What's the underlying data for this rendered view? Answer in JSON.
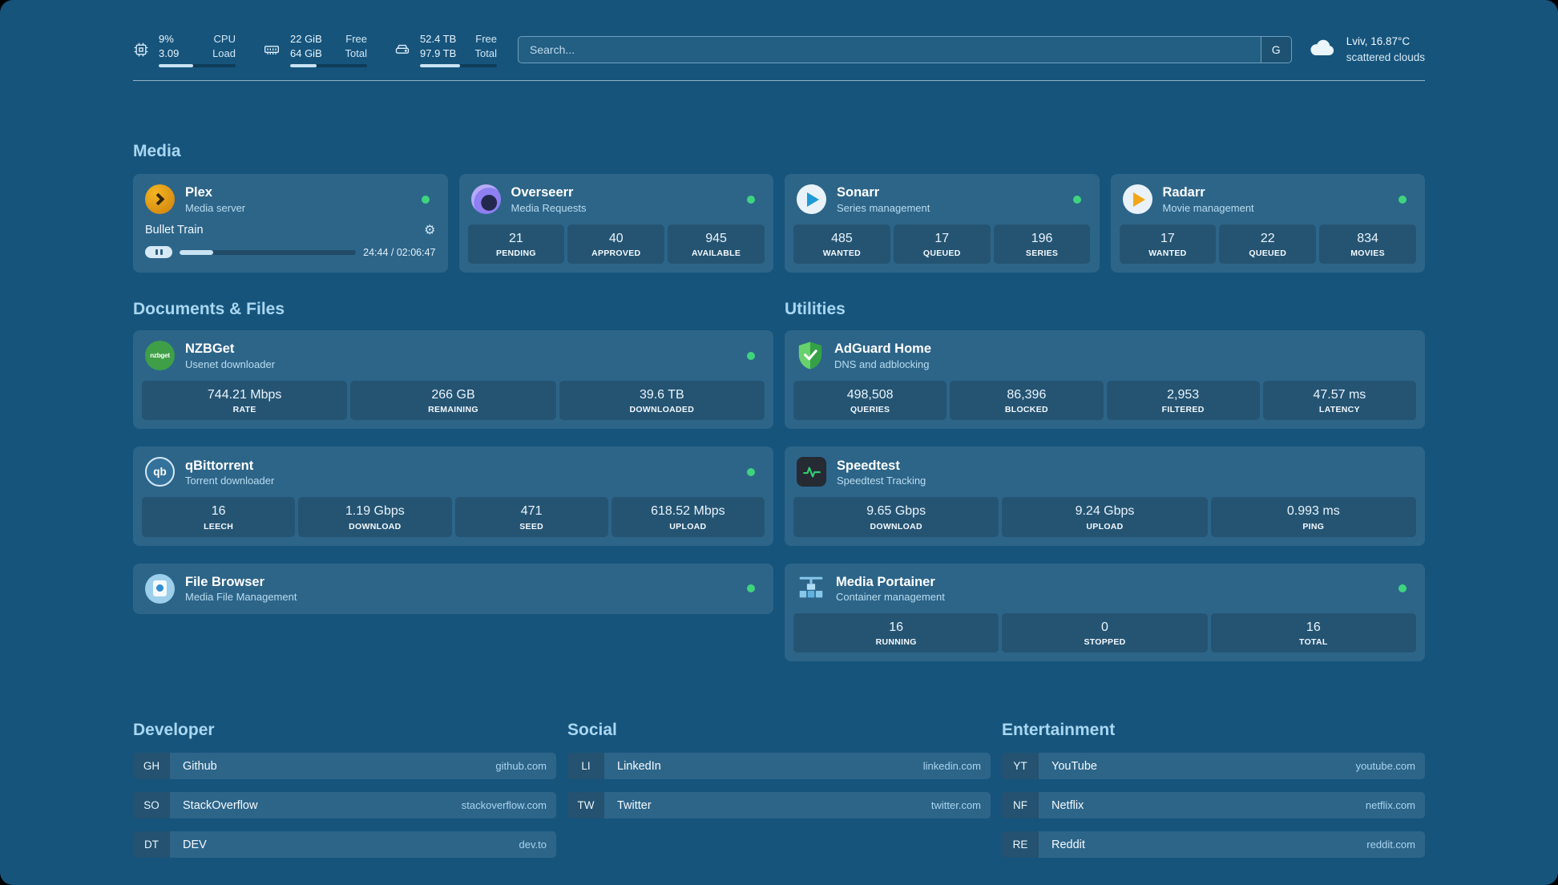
{
  "header": {
    "resources": [
      {
        "icon": "cpu-icon",
        "v1": "9%",
        "l1": "CPU",
        "v2": "3.09",
        "l2": "Load",
        "progress": 45
      },
      {
        "icon": "memory-icon",
        "v1": "22 GiB",
        "l1": "Free",
        "v2": "64 GiB",
        "l2": "Total",
        "progress": 34
      },
      {
        "icon": "disk-icon",
        "v1": "52.4 TB",
        "l1": "Free",
        "v2": "97.9 TB",
        "l2": "Total",
        "progress": 52
      }
    ],
    "search": {
      "placeholder": "Search...",
      "provider_label": "G"
    },
    "weather": {
      "location": "Lviv, 16.87°C",
      "condition": "scattered clouds"
    }
  },
  "media": {
    "heading": "Media",
    "plex": {
      "name": "Plex",
      "desc": "Media server",
      "now_playing": "Bullet Train",
      "time": "24:44 / 02:06:47",
      "progress": 19
    },
    "overseerr": {
      "name": "Overseerr",
      "desc": "Media Requests",
      "stats": [
        {
          "v": "21",
          "l": "PENDING"
        },
        {
          "v": "40",
          "l": "APPROVED"
        },
        {
          "v": "945",
          "l": "AVAILABLE"
        }
      ]
    },
    "sonarr": {
      "name": "Sonarr",
      "desc": "Series management",
      "stats": [
        {
          "v": "485",
          "l": "WANTED"
        },
        {
          "v": "17",
          "l": "QUEUED"
        },
        {
          "v": "196",
          "l": "SERIES"
        }
      ]
    },
    "radarr": {
      "name": "Radarr",
      "desc": "Movie management",
      "stats": [
        {
          "v": "17",
          "l": "WANTED"
        },
        {
          "v": "22",
          "l": "QUEUED"
        },
        {
          "v": "834",
          "l": "MOVIES"
        }
      ]
    }
  },
  "documents": {
    "heading": "Documents & Files",
    "nzbget": {
      "name": "NZBGet",
      "desc": "Usenet downloader",
      "stats": [
        {
          "v": "744.21 Mbps",
          "l": "RATE"
        },
        {
          "v": "266 GB",
          "l": "REMAINING"
        },
        {
          "v": "39.6 TB",
          "l": "DOWNLOADED"
        }
      ]
    },
    "qbittorrent": {
      "name": "qBittorrent",
      "desc": "Torrent downloader",
      "stats": [
        {
          "v": "16",
          "l": "LEECH"
        },
        {
          "v": "1.19 Gbps",
          "l": "DOWNLOAD"
        },
        {
          "v": "471",
          "l": "SEED"
        },
        {
          "v": "618.52 Mbps",
          "l": "UPLOAD"
        }
      ]
    },
    "filebrowser": {
      "name": "File Browser",
      "desc": "Media File Management"
    }
  },
  "utilities": {
    "heading": "Utilities",
    "adguard": {
      "name": "AdGuard Home",
      "desc": "DNS and adblocking",
      "stats": [
        {
          "v": "498,508",
          "l": "QUERIES"
        },
        {
          "v": "86,396",
          "l": "BLOCKED"
        },
        {
          "v": "2,953",
          "l": "FILTERED"
        },
        {
          "v": "47.57 ms",
          "l": "LATENCY"
        }
      ]
    },
    "speedtest": {
      "name": "Speedtest",
      "desc": "Speedtest Tracking",
      "stats": [
        {
          "v": "9.65 Gbps",
          "l": "DOWNLOAD"
        },
        {
          "v": "9.24 Gbps",
          "l": "UPLOAD"
        },
        {
          "v": "0.993 ms",
          "l": "PING"
        }
      ]
    },
    "portainer": {
      "name": "Media Portainer",
      "desc": "Container management",
      "stats": [
        {
          "v": "16",
          "l": "RUNNING"
        },
        {
          "v": "0",
          "l": "STOPPED"
        },
        {
          "v": "16",
          "l": "TOTAL"
        }
      ]
    }
  },
  "bookmarks": {
    "developer": {
      "heading": "Developer",
      "items": [
        {
          "abbr": "GH",
          "name": "Github",
          "domain": "github.com"
        },
        {
          "abbr": "SO",
          "name": "StackOverflow",
          "domain": "stackoverflow.com"
        },
        {
          "abbr": "DT",
          "name": "DEV",
          "domain": "dev.to"
        }
      ]
    },
    "social": {
      "heading": "Social",
      "items": [
        {
          "abbr": "LI",
          "name": "LinkedIn",
          "domain": "linkedin.com"
        },
        {
          "abbr": "TW",
          "name": "Twitter",
          "domain": "twitter.com"
        }
      ]
    },
    "entertainment": {
      "heading": "Entertainment",
      "items": [
        {
          "abbr": "YT",
          "name": "YouTube",
          "domain": "youtube.com"
        },
        {
          "abbr": "NF",
          "name": "Netflix",
          "domain": "netflix.com"
        },
        {
          "abbr": "RE",
          "name": "Reddit",
          "domain": "reddit.com"
        }
      ]
    }
  },
  "icons": {
    "qbittorrent_text": "qb",
    "nzbget_text": "nzbget"
  },
  "colors": {
    "background": "#16547C",
    "status_online": "#3ED47E",
    "heading": "#A9D7F1"
  }
}
